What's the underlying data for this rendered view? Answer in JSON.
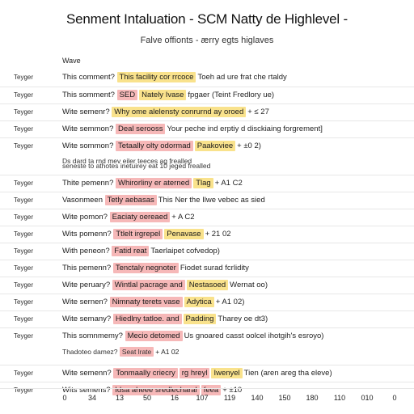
{
  "title": "Senment Intaluation - SCM Natty de Highlevel -",
  "subtitle": "Falve offionts - ærry egts higlaves",
  "column_header": "Wave",
  "colors": {
    "pink_highlight": "#f6b8b8",
    "yellow_highlight": "#f9e28c"
  },
  "rows": [
    {
      "tag": "Teyger",
      "prefix": "This comment?",
      "spans": [
        {
          "text": "This facility cor rrcoce",
          "color": "yellow"
        }
      ],
      "rest": "Toeh ad ure frat che rtaldy"
    },
    {
      "tag": "Teyger",
      "prefix": "This somment?",
      "spans": [
        {
          "text": "SED",
          "color": "pink"
        },
        {
          "text": "Nately Ivase",
          "color": "yellow"
        }
      ],
      "rest": "fpgaer (Teint Fredlory ue)"
    },
    {
      "tag": "Teyger",
      "prefix": "Wite semenr?",
      "spans": [
        {
          "text": "Why ome alelensty conrurnd ay oroed",
          "color": "yellow"
        }
      ],
      "rest": "+ ≤ 27"
    },
    {
      "tag": "Teyger",
      "prefix": "Wite semmon?",
      "spans": [
        {
          "text": "Deal serooss",
          "color": "pink"
        }
      ],
      "rest": "Your peche ind erptiy d disckiaing forgrement]"
    },
    {
      "tag": "Teyger",
      "prefix": "Wite sommon?",
      "spans": [
        {
          "text": "Tetaally olty odormad",
          "color": "pink"
        },
        {
          "text": "Paakoviee",
          "color": "yellow"
        }
      ],
      "rest": "+ ±0 2)",
      "line2": "Ds dard ta rnd mev eiler teeces ag frealled",
      "line3": "seneste to athotes inetuirey eat 10 jeged frealled"
    },
    {
      "tag": "Teyger",
      "prefix": "Thite pemenn?",
      "spans": [
        {
          "text": "Whirorliny er aterned",
          "color": "pink"
        },
        {
          "text": "Tlag",
          "color": "yellow"
        }
      ],
      "rest": "+ A1 C2"
    },
    {
      "tag": "Teyger",
      "prefix": "Vasonmeen",
      "spans": [
        {
          "text": "Tetly aebasas",
          "color": "pink"
        }
      ],
      "rest": "This Ner the Ilwe vebec as sied"
    },
    {
      "tag": "Teyger",
      "prefix": "Wite pomon?",
      "spans": [
        {
          "text": "Eaciaty oereaed",
          "color": "pink"
        }
      ],
      "rest": "+ A C2"
    },
    {
      "tag": "Teyger",
      "prefix": "Wits pomenn?",
      "spans": [
        {
          "text": "Ttlelt irgrepel",
          "color": "pink"
        },
        {
          "text": "Penavase",
          "color": "yellow"
        }
      ],
      "rest": "+ 21 02"
    },
    {
      "tag": "Teyger",
      "prefix": "With peneon?",
      "spans": [
        {
          "text": "Fatid reat",
          "color": "pink"
        }
      ],
      "rest": "Taerlaipet cofvedop)"
    },
    {
      "tag": "Teyger",
      "prefix": "This pemenn?",
      "spans": [
        {
          "text": "Tenctaly negnoter",
          "color": "pink"
        }
      ],
      "rest": "Fiodet surad fcrlidity"
    },
    {
      "tag": "Teyger",
      "prefix": "Wite peruary?",
      "spans": [
        {
          "text": "Wintlal pacrage and",
          "color": "pink"
        },
        {
          "text": "Nestasoed",
          "color": "yellow"
        }
      ],
      "rest": "Wernat oo)"
    },
    {
      "tag": "Teyger",
      "prefix": "Wite sernen?",
      "spans": [
        {
          "text": "Nimnaty terets vase",
          "color": "pink"
        },
        {
          "text": "Adytica",
          "color": "yellow"
        }
      ],
      "rest": "+ A1 02)"
    },
    {
      "tag": "Teyger",
      "prefix": "Wite semany?",
      "spans": [
        {
          "text": "Hiedlny tatloe. and",
          "color": "pink"
        },
        {
          "text": "Padding",
          "color": "yellow"
        }
      ],
      "rest": "Tharey oe dt3)"
    },
    {
      "tag": "Teyger",
      "prefix": "This somnmemy?",
      "spans": [
        {
          "text": "Mecio detomed",
          "color": "pink"
        }
      ],
      "rest": "Us gnoared casst oolcel ihotgih's esroyo)",
      "line2": "Thadoteo damez?",
      "line2_spans": [
        {
          "text": "Seat lrate",
          "color": "pink"
        }
      ],
      "line2_rest": "+ A1 02"
    },
    {
      "tag": "Teyger",
      "prefix": "Wite semenn?",
      "spans": [
        {
          "text": "Tonmaally criecry",
          "color": "pink"
        },
        {
          "text": "rg hreyl",
          "color": "pink"
        },
        {
          "text": "Iwenyel",
          "color": "yellow"
        }
      ],
      "rest": "Tien (aren areg tha eleve)"
    },
    {
      "tag": "Teyger",
      "prefix": "Wits semens?",
      "spans": [
        {
          "text": "Idsa aheee sredlecharal",
          "color": "pink"
        },
        {
          "text": "feea",
          "color": "pink"
        }
      ],
      "rest": "+ ±10"
    }
  ],
  "axis_ticks": [
    "0",
    "34",
    "13",
    "50",
    "16",
    "107",
    "119",
    "140",
    "150",
    "180",
    "110",
    "010",
    "0"
  ]
}
